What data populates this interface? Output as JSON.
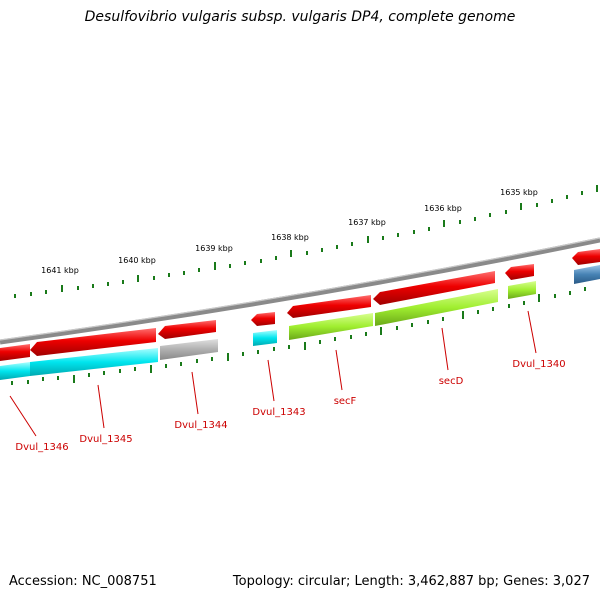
{
  "title": "Desulfovibrio vulgaris subsp. vulgaris DP4, complete genome",
  "footer": {
    "accession": "Accession: NC_008751",
    "summary": "Topology: circular; Length: 3,462,887 bp; Genes: 3,027"
  },
  "scale_labels": [
    "1641 kbp",
    "1640 kbp",
    "1639 kbp",
    "1638 kbp",
    "1637 kbp",
    "1636 kbp",
    "1635 kbp"
  ],
  "gene_labels": [
    "Dvul_1346",
    "Dvul_1345",
    "Dvul_1344",
    "Dvul_1343",
    "secF",
    "secD",
    "Dvul_1340"
  ],
  "colors": {
    "red": "#ee0000",
    "cyan": "#00e5ee",
    "gray": "#aaaaaa",
    "green": "#a0ee30",
    "blue": "#4682b4",
    "backbone": "#888888",
    "tick": "#1a7a1a",
    "label": "#cc0000"
  }
}
